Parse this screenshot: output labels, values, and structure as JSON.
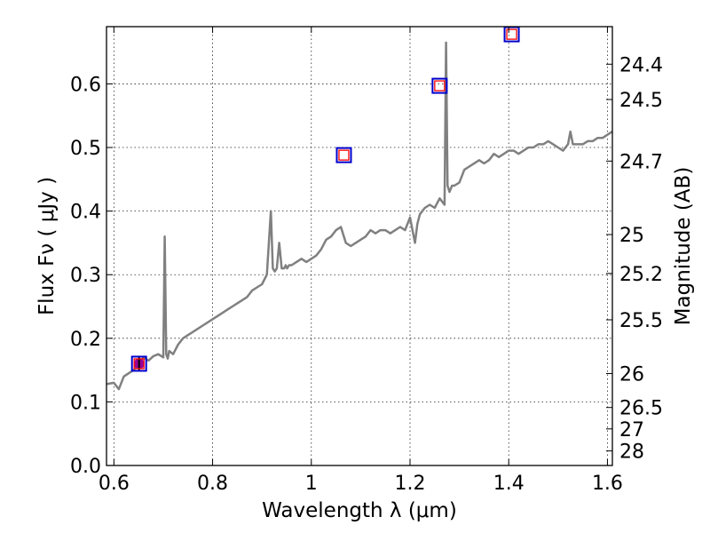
{
  "chart_data": {
    "type": "line",
    "xlabel": "Wavelength  λ (μm)",
    "ylabel": "Flux  Fν  ( μJy )",
    "ylabel_right": "Magnitude (AB)",
    "xlim": [
      0.585,
      1.61
    ],
    "ylim": [
      0.0,
      0.69
    ],
    "x_ticks": [
      {
        "v": 0.6,
        "label": "0.6"
      },
      {
        "v": 0.8,
        "label": "0.8"
      },
      {
        "v": 1.0,
        "label": "1"
      },
      {
        "v": 1.2,
        "label": "1.2"
      },
      {
        "v": 1.4,
        "label": "1.4"
      },
      {
        "v": 1.6,
        "label": "1.6"
      }
    ],
    "y_ticks": [
      {
        "v": 0.0,
        "label": "0.0"
      },
      {
        "v": 0.1,
        "label": "0.1"
      },
      {
        "v": 0.2,
        "label": "0.2"
      },
      {
        "v": 0.3,
        "label": "0.3"
      },
      {
        "v": 0.4,
        "label": "0.4"
      },
      {
        "v": 0.5,
        "label": "0.5"
      },
      {
        "v": 0.6,
        "label": "0.6"
      }
    ],
    "mag_ticks": [
      {
        "mag": 24.4,
        "label": "24.4"
      },
      {
        "mag": 24.5,
        "label": "24.5"
      },
      {
        "mag": 24.7,
        "label": "24.7"
      },
      {
        "mag": 25,
        "label": "25"
      },
      {
        "mag": 25.2,
        "label": "25.2"
      },
      {
        "mag": 25.5,
        "label": "25.5"
      },
      {
        "mag": 26,
        "label": "26"
      },
      {
        "mag": 26.5,
        "label": "26.5"
      },
      {
        "mag": 27,
        "label": "27"
      },
      {
        "mag": 28,
        "label": "28"
      }
    ],
    "grid": true,
    "series": [
      {
        "color": "#808080",
        "x": [
          0.585,
          0.6,
          0.61,
          0.62,
          0.63,
          0.64,
          0.65,
          0.66,
          0.67,
          0.68,
          0.69,
          0.7,
          0.703,
          0.706,
          0.709,
          0.712,
          0.72,
          0.73,
          0.74,
          0.75,
          0.76,
          0.77,
          0.78,
          0.79,
          0.8,
          0.81,
          0.82,
          0.83,
          0.84,
          0.85,
          0.86,
          0.87,
          0.88,
          0.89,
          0.9,
          0.91,
          0.918,
          0.922,
          0.926,
          0.93,
          0.935,
          0.94,
          0.945,
          0.948,
          0.951,
          0.955,
          0.96,
          0.97,
          0.98,
          0.99,
          1.0,
          1.01,
          1.02,
          1.03,
          1.04,
          1.05,
          1.06,
          1.07,
          1.08,
          1.09,
          1.1,
          1.11,
          1.12,
          1.13,
          1.14,
          1.15,
          1.16,
          1.17,
          1.18,
          1.19,
          1.2,
          1.21,
          1.215,
          1.22,
          1.23,
          1.24,
          1.25,
          1.26,
          1.265,
          1.27,
          1.273,
          1.276,
          1.28,
          1.285,
          1.29,
          1.3,
          1.31,
          1.32,
          1.33,
          1.34,
          1.35,
          1.36,
          1.37,
          1.38,
          1.39,
          1.4,
          1.41,
          1.42,
          1.43,
          1.44,
          1.45,
          1.46,
          1.47,
          1.48,
          1.49,
          1.5,
          1.51,
          1.52,
          1.525,
          1.53,
          1.54,
          1.55,
          1.56,
          1.57,
          1.58,
          1.59,
          1.6,
          1.61
        ],
        "y": [
          0.128,
          0.13,
          0.12,
          0.14,
          0.145,
          0.15,
          0.16,
          0.17,
          0.165,
          0.172,
          0.175,
          0.17,
          0.36,
          0.175,
          0.168,
          0.18,
          0.175,
          0.19,
          0.2,
          0.205,
          0.21,
          0.215,
          0.22,
          0.225,
          0.23,
          0.235,
          0.24,
          0.245,
          0.25,
          0.255,
          0.26,
          0.265,
          0.275,
          0.28,
          0.285,
          0.3,
          0.4,
          0.31,
          0.305,
          0.31,
          0.35,
          0.31,
          0.31,
          0.315,
          0.31,
          0.315,
          0.315,
          0.32,
          0.325,
          0.32,
          0.325,
          0.33,
          0.34,
          0.355,
          0.36,
          0.37,
          0.375,
          0.35,
          0.345,
          0.35,
          0.355,
          0.36,
          0.37,
          0.365,
          0.37,
          0.37,
          0.365,
          0.37,
          0.375,
          0.37,
          0.39,
          0.35,
          0.38,
          0.395,
          0.405,
          0.41,
          0.405,
          0.42,
          0.415,
          0.41,
          0.665,
          0.44,
          0.43,
          0.44,
          0.44,
          0.445,
          0.465,
          0.47,
          0.475,
          0.48,
          0.475,
          0.48,
          0.49,
          0.485,
          0.49,
          0.495,
          0.495,
          0.49,
          0.495,
          0.5,
          0.5,
          0.505,
          0.505,
          0.51,
          0.505,
          0.5,
          0.495,
          0.505,
          0.525,
          0.505,
          0.505,
          0.505,
          0.51,
          0.51,
          0.515,
          0.515,
          0.52,
          0.525
        ]
      }
    ],
    "photometry_points": [
      {
        "x": 0.651,
        "y": 0.16,
        "marker": "blue-square"
      },
      {
        "x": 1.066,
        "y": 0.488,
        "marker": "blue-square"
      },
      {
        "x": 1.26,
        "y": 0.597,
        "marker": "blue-square"
      },
      {
        "x": 1.406,
        "y": 0.678,
        "marker": "blue-square"
      }
    ],
    "model_points": [
      {
        "x": 0.651,
        "y": 0.16,
        "marker": "red-square"
      },
      {
        "x": 1.066,
        "y": 0.488,
        "marker": "red-square"
      },
      {
        "x": 1.26,
        "y": 0.597,
        "marker": "red-square"
      },
      {
        "x": 1.406,
        "y": 0.678,
        "marker": "red-square"
      }
    ],
    "measured_point": {
      "x": 0.651,
      "y": 0.16,
      "yerr": 0.011,
      "color": "#990099",
      "errbar_color": "#000000"
    },
    "colors": {
      "line": "#808080",
      "outer_square": "#0000cc",
      "inner_square": "#ff0000",
      "point": "#990099"
    }
  }
}
